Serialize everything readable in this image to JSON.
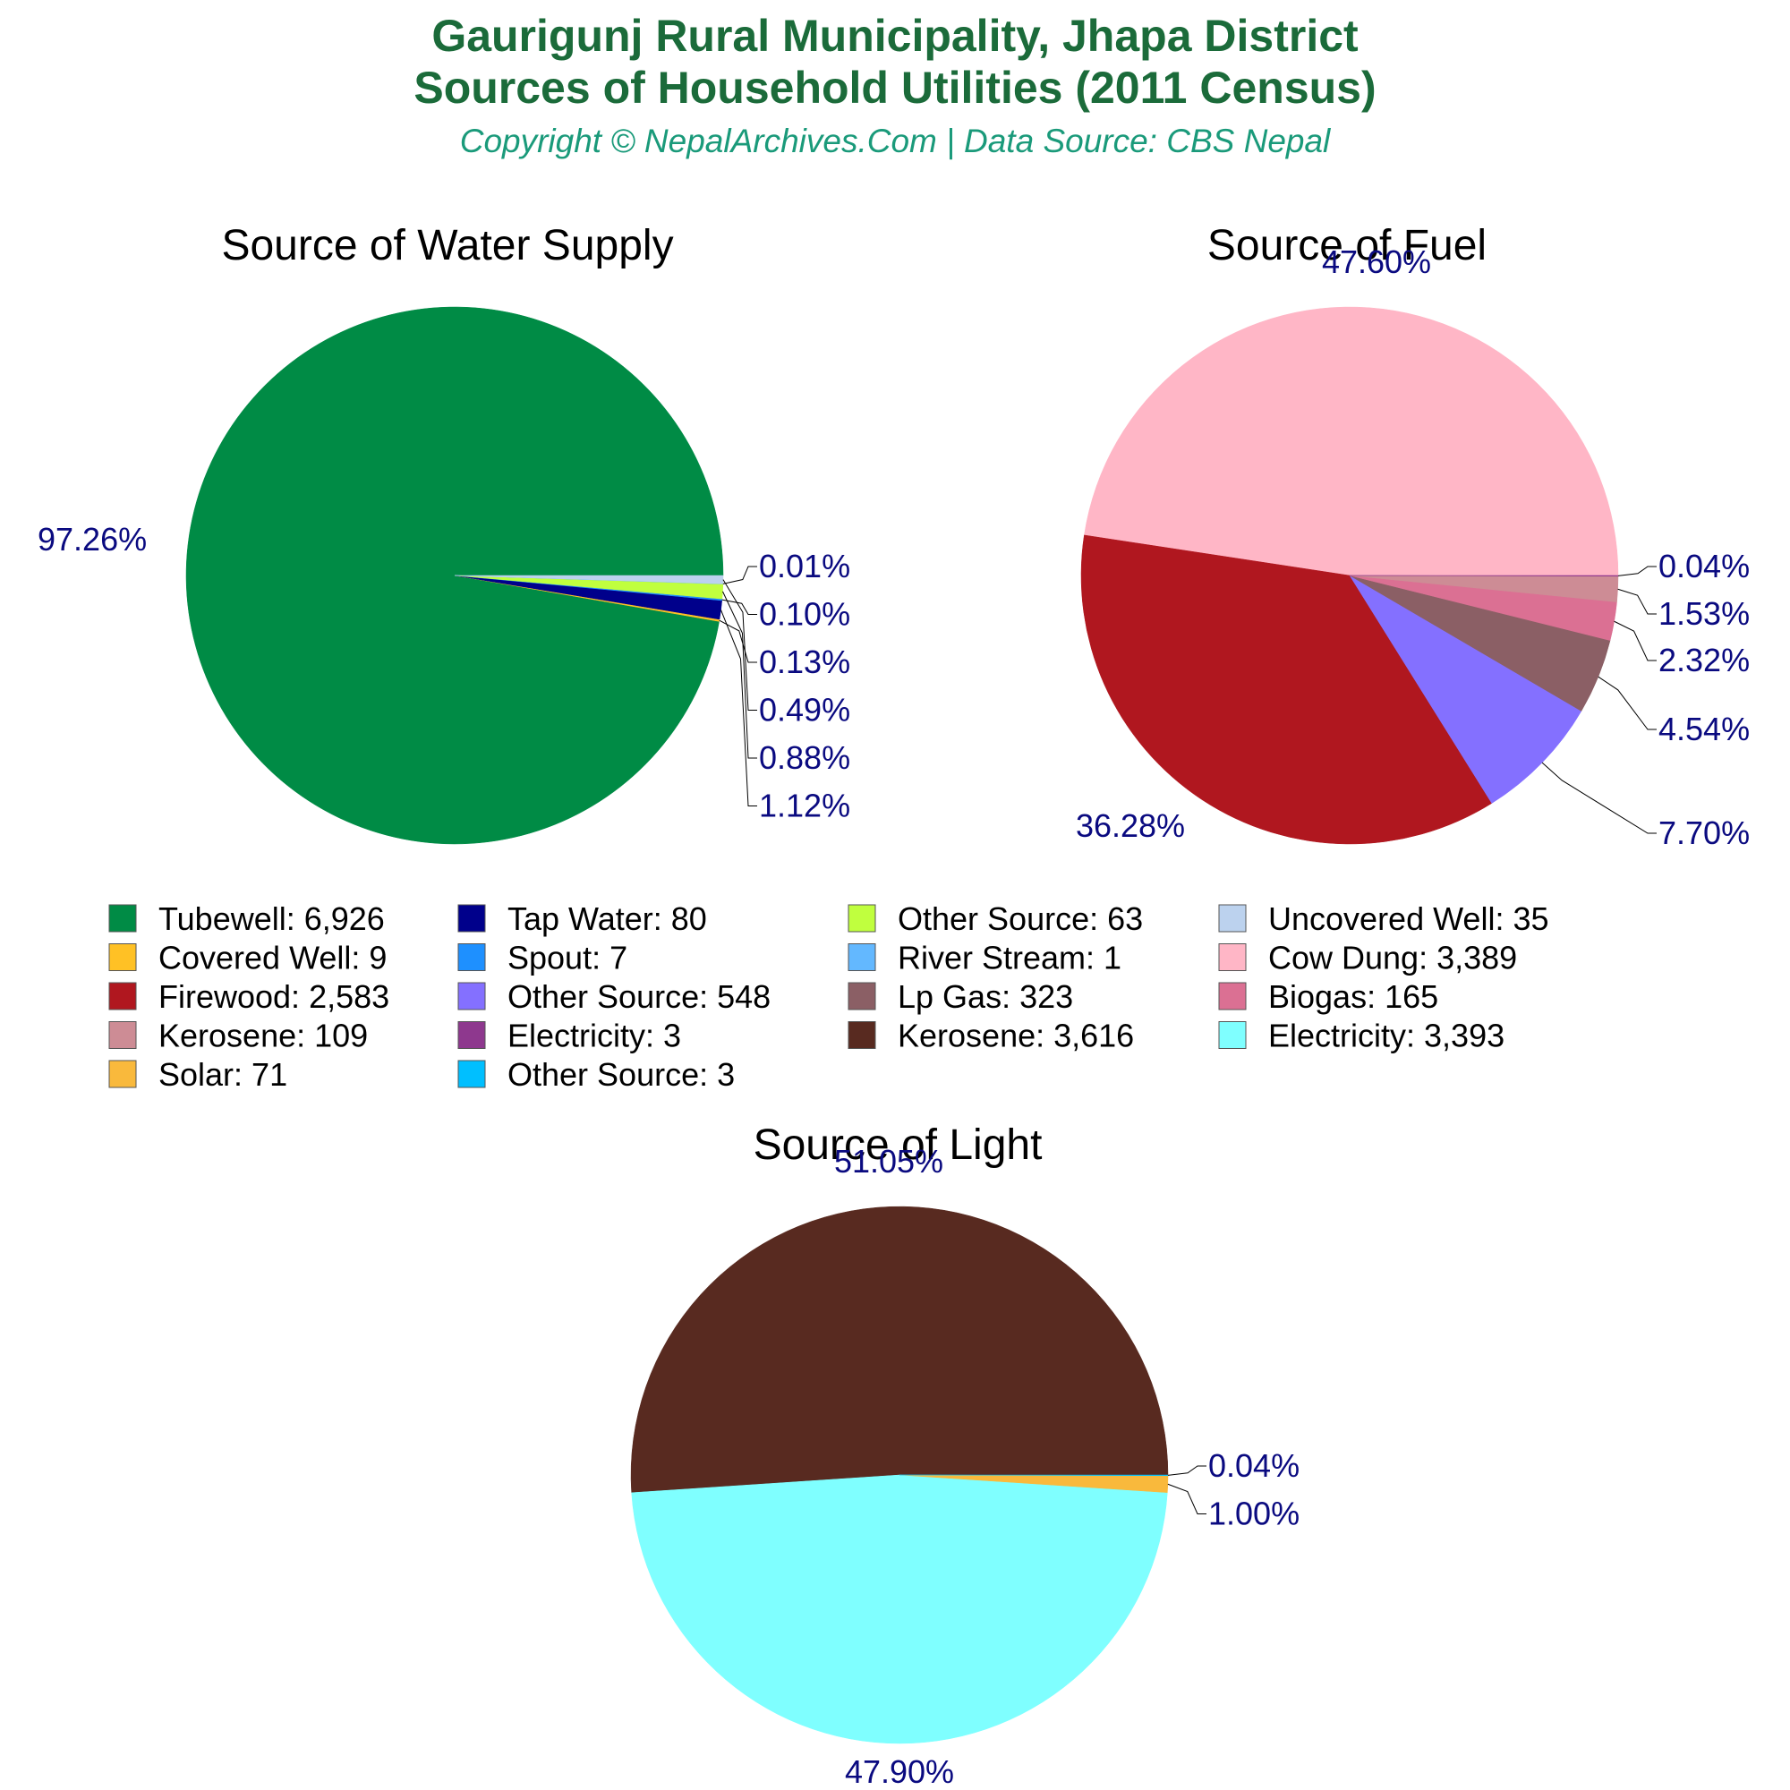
{
  "header": {
    "title_line1": "Gaurigunj Rural Municipality, Jhapa District",
    "title_line2": "Sources of Household Utilities (2011 Census)",
    "subtitle": "Copyright © NepalArchives.Com | Data Source: CBS Nepal",
    "title_color": "#1b6b3a",
    "subtitle_color": "#1a9a7a"
  },
  "label_color": "#0a0a80",
  "chart_data": [
    {
      "type": "pie",
      "title": "Source of Water Supply",
      "slices": [
        {
          "label": "Tubewell",
          "value": 6926,
          "percent_label": "97.26%",
          "color": "#008b45"
        },
        {
          "label": "Covered Well",
          "value": 9,
          "percent_label": "0.13%",
          "color": "#ffc125"
        },
        {
          "label": "Tap Water",
          "value": 80,
          "percent_label": "1.12%",
          "color": "#00008b"
        },
        {
          "label": "Spout",
          "value": 7,
          "percent_label": "0.10%",
          "color": "#1e90ff"
        },
        {
          "label": "Other Source",
          "value": 63,
          "percent_label": "0.88%",
          "color": "#c0ff3e"
        },
        {
          "label": "River Stream",
          "value": 1,
          "percent_label": "0.01%",
          "color": "#63b8ff"
        },
        {
          "label": "Uncovered Well",
          "value": 35,
          "percent_label": "0.49%",
          "color": "#bcd2ee"
        }
      ],
      "small_labels_order": [
        "0.01%",
        "0.10%",
        "0.13%",
        "0.49%",
        "0.88%",
        "1.12%"
      ]
    },
    {
      "type": "pie",
      "title": "Source of Fuel",
      "slices": [
        {
          "label": "Cow Dung",
          "value": 3389,
          "percent_label": "47.60%",
          "color": "#ffb6c6"
        },
        {
          "label": "Firewood",
          "value": 2583,
          "percent_label": "36.28%",
          "color": "#b0171f"
        },
        {
          "label": "Other Source",
          "value": 548,
          "percent_label": "7.70%",
          "color": "#8470ff"
        },
        {
          "label": "Lp Gas",
          "value": 323,
          "percent_label": "4.54%",
          "color": "#8b5f65"
        },
        {
          "label": "Biogas",
          "value": 165,
          "percent_label": "2.32%",
          "color": "#db7093"
        },
        {
          "label": "Kerosene",
          "value": 109,
          "percent_label": "1.53%",
          "color": "#cd8c95"
        },
        {
          "label": "Electricity",
          "value": 3,
          "percent_label": "0.04%",
          "color": "#8e388e"
        }
      ],
      "small_labels_order": [
        "0.04%",
        "1.53%",
        "2.32%",
        "4.54%",
        "7.70%"
      ]
    },
    {
      "type": "pie",
      "title": "Source of Light",
      "slices": [
        {
          "label": "Kerosene",
          "value": 3616,
          "percent_label": "51.05%",
          "color": "#582a20"
        },
        {
          "label": "Electricity",
          "value": 3393,
          "percent_label": "47.90%",
          "color": "#7fffff"
        },
        {
          "label": "Solar",
          "value": 71,
          "percent_label": "1.00%",
          "color": "#f9b93c"
        },
        {
          "label": "Other Source",
          "value": 3,
          "percent_label": "0.04%",
          "color": "#00bfff"
        }
      ],
      "small_labels_order": [
        "0.04%",
        "1.00%"
      ]
    }
  ],
  "legend": {
    "placement": "middle",
    "items": [
      {
        "text": "Tubewell: 6,926",
        "color": "#008b45"
      },
      {
        "text": "Tap Water: 80",
        "color": "#00008b"
      },
      {
        "text": "Other Source: 63",
        "color": "#c0ff3e"
      },
      {
        "text": "Uncovered Well: 35",
        "color": "#bcd2ee"
      },
      {
        "text": "Covered Well: 9",
        "color": "#ffc125"
      },
      {
        "text": "Spout: 7",
        "color": "#1e90ff"
      },
      {
        "text": "River Stream: 1",
        "color": "#63b8ff"
      },
      {
        "text": "Cow Dung: 3,389",
        "color": "#ffb6c6"
      },
      {
        "text": "Firewood: 2,583",
        "color": "#b0171f"
      },
      {
        "text": "Other Source: 548",
        "color": "#8470ff"
      },
      {
        "text": "Lp Gas: 323",
        "color": "#8b5f65"
      },
      {
        "text": "Biogas: 165",
        "color": "#db7093"
      },
      {
        "text": "Kerosene: 109",
        "color": "#cd8c95"
      },
      {
        "text": "Electricity: 3",
        "color": "#8e388e"
      },
      {
        "text": "Kerosene: 3,616",
        "color": "#582a20"
      },
      {
        "text": "Electricity: 3,393",
        "color": "#7fffff"
      },
      {
        "text": "Solar: 71",
        "color": "#f9b93c"
      },
      {
        "text": "Other Source: 3",
        "color": "#00bfff"
      }
    ]
  }
}
